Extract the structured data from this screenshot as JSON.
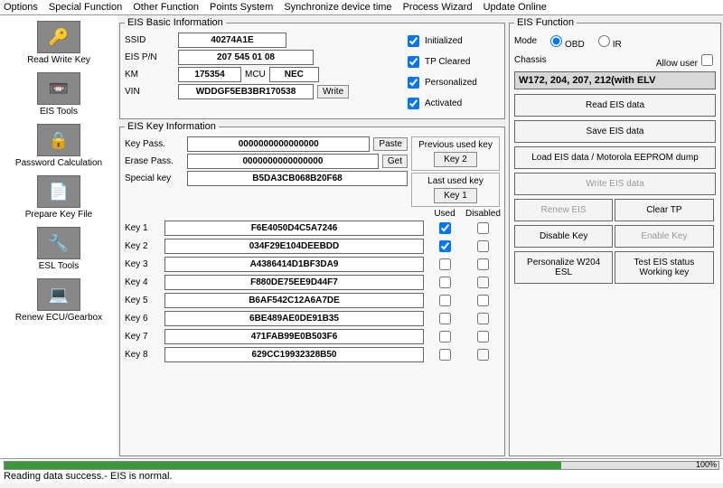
{
  "menu": {
    "options": "Options",
    "special": "Special Function",
    "other": "Other Function",
    "points": "Points System",
    "sync": "Synchronize device time",
    "wizard": "Process Wizard",
    "update": "Update Online"
  },
  "sidebar": {
    "items": [
      {
        "label": "Read Write Key",
        "icon": "🔑"
      },
      {
        "label": "EIS Tools",
        "icon": "📼"
      },
      {
        "label": "Password Calculation",
        "icon": "🔒"
      },
      {
        "label": "Prepare Key File",
        "icon": "📄"
      },
      {
        "label": "ESL Tools",
        "icon": "🔧"
      },
      {
        "label": "Renew ECU/Gearbox",
        "icon": "💻"
      }
    ]
  },
  "basic": {
    "legend": "EIS Basic Information",
    "ssid_lbl": "SSID",
    "ssid": "40274A1E",
    "eispn_lbl": "EIS P/N",
    "eispn": "207 545 01 08",
    "km_lbl": "KM",
    "km": "175354",
    "mcu_lbl": "MCU",
    "mcu": "NEC",
    "vin_lbl": "VIN",
    "vin": "WDDGF5EB3BR170538",
    "write_btn": "Write",
    "checks": {
      "init": "Initialized",
      "tp": "TP Cleared",
      "pers": "Personalized",
      "act": "Activated"
    }
  },
  "keyinfo": {
    "legend": "EIS Key Information",
    "keypass_lbl": "Key Pass.",
    "keypass": "0000000000000000",
    "paste_btn": "Paste",
    "erasepass_lbl": "Erase Pass.",
    "erasepass": "0000000000000000",
    "get_btn": "Get",
    "special_lbl": "Special key",
    "special": "B5DA3CB068B20F68",
    "used_hdr": "Used",
    "disabled_hdr": "Disabled",
    "keys": [
      {
        "label": "Key 1",
        "val": "F6E4050D4C5A7246",
        "used": true
      },
      {
        "label": "Key 2",
        "val": "034F29E104DEEBDD",
        "used": true
      },
      {
        "label": "Key 3",
        "val": "A4386414D1BF3DA9",
        "used": false
      },
      {
        "label": "Key 4",
        "val": "F880DE75EE9D44F7",
        "used": false
      },
      {
        "label": "Key 5",
        "val": "B6AF542C12A6A7DE",
        "used": false
      },
      {
        "label": "Key 6",
        "val": "6BE489AE0DE91B35",
        "used": false
      },
      {
        "label": "Key 7",
        "val": "471FAB99E0B503F6",
        "used": false
      },
      {
        "label": "Key 8",
        "val": "629CC19932328B50",
        "used": false
      }
    ],
    "prev_key_lbl": "Previous used key",
    "prev_key_btn": "Key 2",
    "last_key_lbl": "Last used key",
    "last_key_btn": "Key 1"
  },
  "func": {
    "legend": "EIS Function",
    "mode_lbl": "Mode",
    "obd": "OBD",
    "ir": "IR",
    "chassis_lbl": "Chassis",
    "allow_lbl": "Allow user",
    "chassis_sel": "W172, 204, 207, 212(with ELV",
    "read_btn": "Read EIS data",
    "save_btn": "Save EIS data",
    "load_btn": "Load EIS data / Motorola EEPROM dump",
    "write_btn": "Write EIS data",
    "renew_btn": "Renew EIS",
    "clear_btn": "Clear TP",
    "disable_btn": "Disable Key",
    "enable_btn": "Enable Key",
    "personalize_btn": "Personalize W204 ESL",
    "test_btn": "Test EIS status Working key"
  },
  "status": {
    "progress_pct": "100%",
    "text": "Reading data success.- EIS is normal."
  }
}
